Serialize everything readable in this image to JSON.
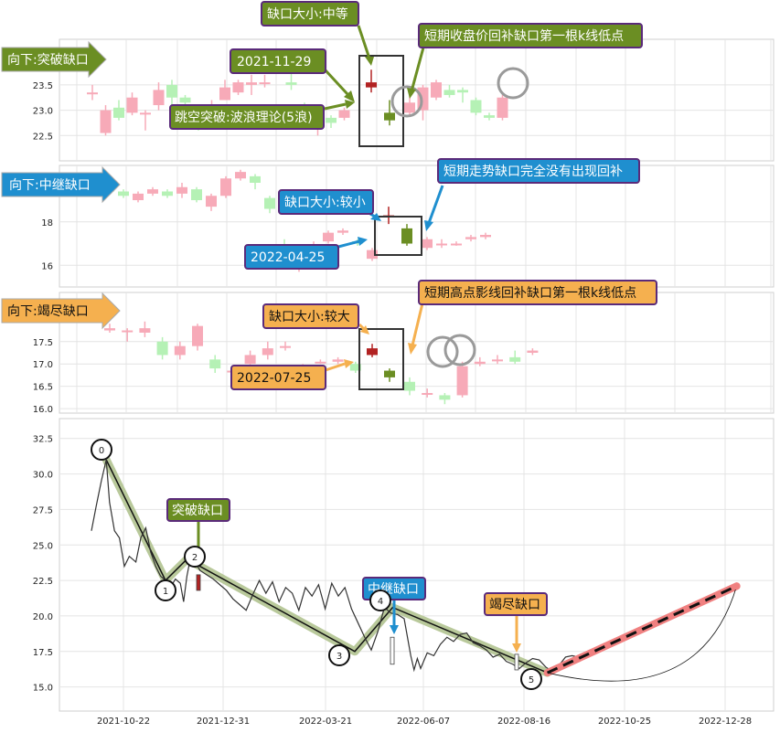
{
  "colors": {
    "up": "#f7aab8",
    "down": "#b5f1b5",
    "up_gap": "#b22222",
    "down_gap": "#6b8e23",
    "green_box": "#6b8e23",
    "blue_box": "#1f8fcf",
    "orange_box": "#f5b04f",
    "trend": "#b9c99b",
    "price": "#333333",
    "forecast": "#f08080"
  },
  "chart_data": [
    {
      "type": "candlestick",
      "panel": "breakaway",
      "title": "向下:突破缺口",
      "yticks": [
        22.5,
        23.0,
        23.5
      ],
      "ylim": [
        22.0,
        24.4
      ],
      "candles": [
        {
          "o": 23.35,
          "c": 23.35,
          "h": 23.5,
          "l": 23.2
        },
        {
          "o": 22.55,
          "c": 23.0,
          "h": 23.1,
          "l": 22.5
        },
        {
          "o": 23.05,
          "c": 22.85,
          "h": 23.2,
          "l": 22.8
        },
        {
          "o": 22.95,
          "c": 23.25,
          "h": 23.35,
          "l": 22.9
        },
        {
          "o": 22.95,
          "c": 22.95,
          "h": 23.0,
          "l": 22.6
        },
        {
          "o": 23.1,
          "c": 23.4,
          "h": 23.55,
          "l": 23.0
        },
        {
          "o": 23.5,
          "c": 23.25,
          "h": 23.6,
          "l": 23.1
        },
        {
          "o": 23.25,
          "c": 23.15,
          "h": 23.3,
          "l": 23.0
        },
        {
          "o": 23.0,
          "c": 22.65,
          "h": 23.05,
          "l": 22.6
        },
        {
          "o": 22.75,
          "c": 23.05,
          "h": 23.2,
          "l": 22.7
        },
        {
          "o": 23.2,
          "c": 23.45,
          "h": 23.6,
          "l": 23.2
        },
        {
          "o": 23.35,
          "c": 23.55,
          "h": 23.6,
          "l": 23.3
        },
        {
          "o": 23.5,
          "c": 23.55,
          "h": 23.7,
          "l": 23.3
        },
        {
          "o": 23.55,
          "c": 23.55,
          "h": 23.7,
          "l": 23.45
        },
        {
          "o": 23.85,
          "c": 24.0,
          "h": 24.1,
          "l": 23.8
        },
        {
          "o": 23.55,
          "c": 23.5,
          "h": 23.9,
          "l": 23.4
        },
        {
          "o": 22.95,
          "c": 22.8,
          "h": 23.15,
          "l": 22.7
        },
        {
          "o": 22.75,
          "c": 23.05,
          "h": 23.1,
          "l": 22.5
        },
        {
          "o": 22.85,
          "c": 22.75,
          "h": 22.9,
          "l": 22.65
        },
        {
          "o": 22.85,
          "c": 23.0,
          "h": 23.05,
          "l": 22.8
        },
        {
          "o": 22.95,
          "c": 23.15,
          "h": 23.3,
          "l": 22.9
        },
        {
          "o": 23.0,
          "c": 23.45,
          "h": 23.5,
          "l": 22.8
        },
        {
          "o": 23.25,
          "c": 23.55,
          "h": 23.6,
          "l": 23.2
        },
        {
          "o": 23.4,
          "c": 23.3,
          "h": 23.5,
          "l": 23.25
        },
        {
          "o": 23.4,
          "c": 23.35,
          "h": 23.45,
          "l": 23.15
        },
        {
          "o": 23.2,
          "c": 22.95,
          "h": 23.25,
          "l": 22.9
        },
        {
          "o": 22.9,
          "c": 22.85,
          "h": 22.95,
          "l": 22.8
        },
        {
          "o": 22.85,
          "c": 23.25,
          "h": 23.3,
          "l": 22.8
        }
      ],
      "gap_candles": [
        {
          "o": 23.45,
          "c": 23.55,
          "h": 23.8,
          "l": 23.35
        },
        {
          "o": 22.95,
          "c": 22.8,
          "h": 23.2,
          "l": 22.7
        }
      ],
      "annotations": {
        "size": "缺口大小:中等",
        "date": "2021-11-29",
        "note": "短期收盘价回补缺口第一根k线低点",
        "theory": "跳空突破:波浪理论(5浪)"
      }
    },
    {
      "type": "candlestick",
      "panel": "runaway",
      "title": "向下:中继缺口",
      "yticks": [
        16,
        18
      ],
      "ylim": [
        15.0,
        20.6
      ],
      "candles": [
        {
          "o": 19.6,
          "c": 19.7,
          "h": 19.8,
          "l": 19.5
        },
        {
          "o": 19.5,
          "c": 19.4,
          "h": 19.6,
          "l": 19.3
        },
        {
          "o": 19.4,
          "c": 19.2,
          "h": 19.5,
          "l": 19.1
        },
        {
          "o": 19.0,
          "c": 19.3,
          "h": 19.4,
          "l": 18.9
        },
        {
          "o": 19.3,
          "c": 19.5,
          "h": 19.6,
          "l": 19.2
        },
        {
          "o": 19.4,
          "c": 19.2,
          "h": 19.5,
          "l": 19.1
        },
        {
          "o": 19.3,
          "c": 19.6,
          "h": 19.8,
          "l": 19.1
        },
        {
          "o": 19.5,
          "c": 19.0,
          "h": 19.6,
          "l": 18.9
        },
        {
          "o": 18.7,
          "c": 19.2,
          "h": 19.3,
          "l": 18.5
        },
        {
          "o": 19.2,
          "c": 20.0,
          "h": 20.1,
          "l": 19.1
        },
        {
          "o": 20.0,
          "c": 20.3,
          "h": 20.4,
          "l": 19.9
        },
        {
          "o": 20.1,
          "c": 19.8,
          "h": 20.2,
          "l": 19.5
        },
        {
          "o": 19.1,
          "c": 18.6,
          "h": 19.2,
          "l": 18.4
        },
        {
          "o": 16.9,
          "c": 16.2,
          "h": 17.2,
          "l": 16.1
        },
        {
          "o": 15.8,
          "c": 16.8,
          "h": 16.9,
          "l": 15.7
        },
        {
          "o": 16.6,
          "c": 16.9,
          "h": 17.1,
          "l": 16.5
        },
        {
          "o": 17.1,
          "c": 17.5,
          "h": 17.6,
          "l": 17.0
        },
        {
          "o": 17.5,
          "c": 17.6,
          "h": 17.7,
          "l": 17.4
        },
        {
          "o": 17.1,
          "c": 17.0,
          "h": 17.2,
          "l": 16.9
        },
        {
          "o": 16.3,
          "c": 16.7,
          "h": 16.8,
          "l": 16.2
        },
        {
          "o": 16.8,
          "c": 17.2,
          "h": 17.3,
          "l": 16.7
        },
        {
          "o": 17.0,
          "c": 17.0,
          "h": 17.2,
          "l": 16.8
        },
        {
          "o": 17.0,
          "c": 17.0,
          "h": 17.1,
          "l": 16.9
        },
        {
          "o": 17.2,
          "c": 17.3,
          "h": 17.4,
          "l": 17.1
        },
        {
          "o": 17.3,
          "c": 17.4,
          "h": 17.5,
          "l": 17.2
        }
      ],
      "gap_candles": [
        {
          "o": 18.3,
          "c": 18.3,
          "h": 18.7,
          "l": 17.9
        },
        {
          "o": 17.7,
          "c": 17.0,
          "h": 17.9,
          "l": 16.9
        }
      ],
      "annotations": {
        "size": "缺口大小:较小",
        "date": "2022-04-25",
        "note": "短期走势缺口完全没有出现回补"
      }
    },
    {
      "type": "candlestick",
      "panel": "exhaustion",
      "title": "向下:竭尽缺口",
      "yticks": [
        16.0,
        16.5,
        17.0,
        17.5
      ],
      "ylim": [
        15.9,
        18.6
      ],
      "candles": [
        {
          "o": 17.75,
          "c": 17.8,
          "h": 17.9,
          "l": 17.7
        },
        {
          "o": 17.75,
          "c": 17.75,
          "h": 17.8,
          "l": 17.5
        },
        {
          "o": 17.7,
          "c": 17.8,
          "h": 17.95,
          "l": 17.6
        },
        {
          "o": 17.5,
          "c": 17.2,
          "h": 17.6,
          "l": 17.1
        },
        {
          "o": 17.2,
          "c": 17.4,
          "h": 17.5,
          "l": 17.1
        },
        {
          "o": 17.4,
          "c": 17.85,
          "h": 17.9,
          "l": 17.3
        },
        {
          "o": 17.1,
          "c": 16.9,
          "h": 17.2,
          "l": 16.8
        },
        {
          "o": 16.85,
          "c": 16.85,
          "h": 16.95,
          "l": 16.7
        },
        {
          "o": 17.0,
          "c": 17.2,
          "h": 17.3,
          "l": 16.9
        },
        {
          "o": 17.2,
          "c": 17.35,
          "h": 17.5,
          "l": 17.1
        },
        {
          "o": 17.4,
          "c": 17.4,
          "h": 17.5,
          "l": 17.3
        },
        {
          "o": 16.7,
          "c": 16.9,
          "h": 17.0,
          "l": 16.6
        },
        {
          "o": 17.05,
          "c": 17.05,
          "h": 17.1,
          "l": 17.0
        },
        {
          "o": 17.05,
          "c": 17.1,
          "h": 17.15,
          "l": 17.0
        },
        {
          "o": 17.0,
          "c": 16.85,
          "h": 17.05,
          "l": 16.8
        },
        {
          "o": 16.6,
          "c": 16.4,
          "h": 16.7,
          "l": 16.3
        },
        {
          "o": 16.35,
          "c": 16.35,
          "h": 16.45,
          "l": 16.25
        },
        {
          "o": 16.3,
          "c": 16.2,
          "h": 16.35,
          "l": 16.1
        },
        {
          "o": 16.3,
          "c": 16.95,
          "h": 17.05,
          "l": 16.25
        },
        {
          "o": 17.0,
          "c": 17.05,
          "h": 17.15,
          "l": 16.95
        },
        {
          "o": 17.1,
          "c": 17.1,
          "h": 17.2,
          "l": 17.0
        },
        {
          "o": 17.15,
          "c": 17.05,
          "h": 17.3,
          "l": 17.0
        },
        {
          "o": 17.25,
          "c": 17.3,
          "h": 17.35,
          "l": 17.2
        }
      ],
      "gap_candles": [
        {
          "o": 17.2,
          "c": 17.35,
          "h": 17.45,
          "l": 17.15
        },
        {
          "o": 16.85,
          "c": 16.7,
          "h": 16.9,
          "l": 16.6
        }
      ],
      "annotations": {
        "size": "缺口大小:较大",
        "date": "2022-07-25",
        "note": "短期高点影线回补缺口第一根k线低点"
      }
    },
    {
      "type": "line",
      "panel": "overview",
      "xticks": [
        "2021-10-22",
        "2021-12-31",
        "2022-03-21",
        "2022-06-07",
        "2022-08-16",
        "2022-10-25",
        "2022-12-28"
      ],
      "yticks": [
        15.0,
        17.5,
        20.0,
        22.5,
        25.0,
        27.5,
        30.0,
        32.5
      ],
      "ylim": [
        13.3,
        33.9
      ],
      "price": [
        [
          0,
          26.0
        ],
        [
          3,
          27.8
        ],
        [
          6,
          29.5
        ],
        [
          9,
          31.0
        ],
        [
          11,
          28.0
        ],
        [
          14,
          26.0
        ],
        [
          17,
          25.5
        ],
        [
          20,
          23.5
        ],
        [
          23,
          24.2
        ],
        [
          27,
          23.8
        ],
        [
          30,
          25.5
        ],
        [
          33,
          26.2
        ],
        [
          36,
          24.5
        ],
        [
          39,
          23.5
        ],
        [
          42,
          22.8
        ],
        [
          45,
          22.5
        ],
        [
          48,
          22.0
        ],
        [
          51,
          22.6
        ],
        [
          54,
          22.3
        ],
        [
          56,
          21.0
        ],
        [
          58,
          22.8
        ],
        [
          60,
          24.0
        ],
        [
          63,
          23.8
        ],
        [
          66,
          23.2
        ],
        [
          70,
          22.9
        ],
        [
          74,
          22.6
        ],
        [
          78,
          22.2
        ],
        [
          82,
          21.8
        ],
        [
          86,
          21.2
        ],
        [
          90,
          20.8
        ],
        [
          94,
          20.4
        ],
        [
          98,
          21.5
        ],
        [
          102,
          22.5
        ],
        [
          106,
          21.6
        ],
        [
          110,
          22.4
        ],
        [
          114,
          21.0
        ],
        [
          118,
          22.0
        ],
        [
          122,
          21.6
        ],
        [
          126,
          20.4
        ],
        [
          130,
          22.0
        ],
        [
          134,
          21.4
        ],
        [
          138,
          22.2
        ],
        [
          142,
          20.5
        ],
        [
          146,
          22.3
        ],
        [
          150,
          21.4
        ],
        [
          154,
          22.0
        ],
        [
          158,
          20.5
        ],
        [
          162,
          19.5
        ],
        [
          166,
          18.5
        ],
        [
          170,
          17.6
        ],
        [
          174,
          18.9
        ],
        [
          178,
          20.6
        ],
        [
          182,
          20.2
        ],
        [
          186,
          20.1
        ],
        [
          190,
          19.8
        ],
        [
          194,
          17.2
        ],
        [
          196,
          16.2
        ],
        [
          198,
          17.0
        ],
        [
          200,
          16.3
        ],
        [
          204,
          17.4
        ],
        [
          208,
          17.2
        ],
        [
          212,
          18.0
        ],
        [
          216,
          18.5
        ],
        [
          220,
          18.2
        ],
        [
          224,
          18.7
        ],
        [
          228,
          18.8
        ],
        [
          232,
          18.1
        ],
        [
          236,
          17.9
        ],
        [
          240,
          17.6
        ],
        [
          244,
          17.1
        ],
        [
          248,
          17.3
        ],
        [
          252,
          16.8
        ],
        [
          256,
          16.6
        ],
        [
          260,
          16.3
        ],
        [
          264,
          16.7
        ],
        [
          268,
          17.0
        ],
        [
          272,
          16.9
        ],
        [
          276,
          16.4
        ],
        [
          280,
          16.1
        ],
        [
          284,
          16.5
        ],
        [
          288,
          17.1
        ],
        [
          292,
          17.2
        ],
        [
          296,
          17.1
        ],
        [
          300,
          17.2
        ]
      ],
      "trend": [
        [
          9,
          31.0
        ],
        [
          45,
          22.5
        ],
        [
          58,
          24.0
        ],
        [
          160,
          17.5
        ],
        [
          183,
          20.6
        ],
        [
          277,
          16.0
        ]
      ],
      "wave_labels": [
        "0",
        "1",
        "2",
        "3",
        "4",
        "5"
      ],
      "forecast": {
        "from": [
          277,
          16.0
        ],
        "to": [
          392,
          22.1
        ]
      },
      "gap_labels": {
        "breakaway": "突破缺口",
        "runaway": "中继缺口",
        "exhaustion": "竭尽缺口"
      }
    }
  ]
}
